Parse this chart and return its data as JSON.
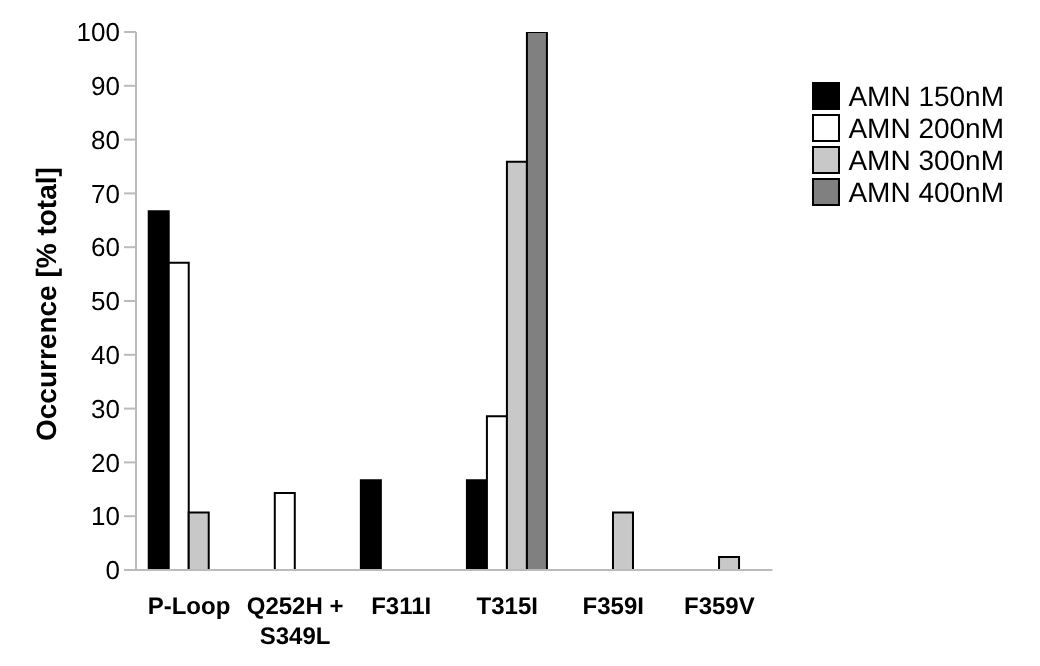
{
  "chart_data": {
    "type": "bar",
    "ylabel": "Occurrence [% total]",
    "categories": [
      "P-Loop",
      "Q252H + S349L",
      "F311I",
      "T315I",
      "F359I",
      "F359V"
    ],
    "series": [
      {
        "name": "AMN 150nM",
        "color": "#000000",
        "values": [
          66.7,
          null,
          16.7,
          16.7,
          null,
          null
        ]
      },
      {
        "name": "AMN 200nM",
        "color": "#ffffff",
        "values": [
          57.1,
          14.3,
          null,
          28.6,
          null,
          null
        ]
      },
      {
        "name": "AMN 300nM",
        "color": "#c8c8c8",
        "values": [
          10.7,
          null,
          null,
          75.9,
          10.7,
          2.4
        ]
      },
      {
        "name": "AMN 400nM",
        "color": "#808080",
        "values": [
          null,
          null,
          null,
          100,
          null,
          null
        ]
      }
    ],
    "ylim": [
      0,
      100
    ],
    "yticks": [
      0,
      10,
      20,
      30,
      40,
      50,
      60,
      70,
      80,
      90,
      100
    ],
    "grid": false,
    "legend": "top right"
  }
}
